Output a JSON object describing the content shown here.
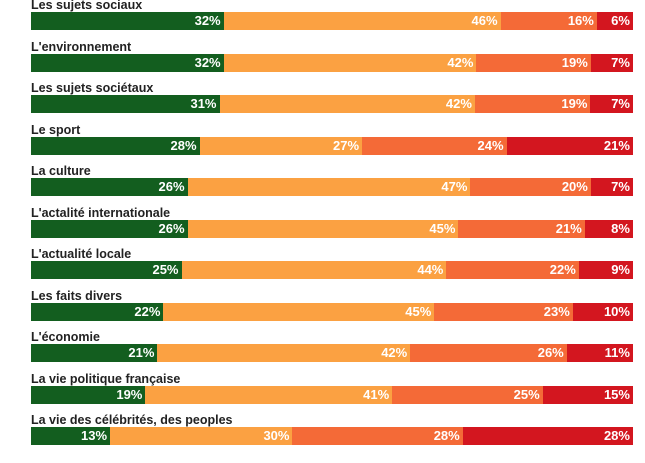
{
  "colors": {
    "very_important": "#135e1f",
    "important": "#fba142",
    "not_very_important": "#f46a37",
    "not_important": "#d3161f"
  },
  "chart_data": {
    "type": "bar",
    "orientation": "horizontal",
    "stacked": true,
    "categories": [
      "Les sujets sociaux",
      "L'environnement",
      "Les sujets sociétaux",
      "Le sport",
      "La culture",
      "L'actalité internationale",
      "L'actualité locale",
      "Les faits divers",
      "L'économie",
      "La vie politique française",
      "La vie des célébrités, des peoples"
    ],
    "series": [
      {
        "values": [
          32,
          32,
          31,
          28,
          26,
          26,
          25,
          22,
          21,
          19,
          13
        ]
      },
      {
        "values": [
          46,
          42,
          42,
          27,
          47,
          45,
          44,
          45,
          42,
          41,
          30
        ]
      },
      {
        "values": [
          16,
          19,
          19,
          24,
          20,
          21,
          22,
          23,
          26,
          25,
          28
        ]
      },
      {
        "values": [
          6,
          7,
          7,
          21,
          7,
          8,
          9,
          10,
          11,
          15,
          28
        ]
      }
    ],
    "value_suffix": "%",
    "grid": false
  }
}
